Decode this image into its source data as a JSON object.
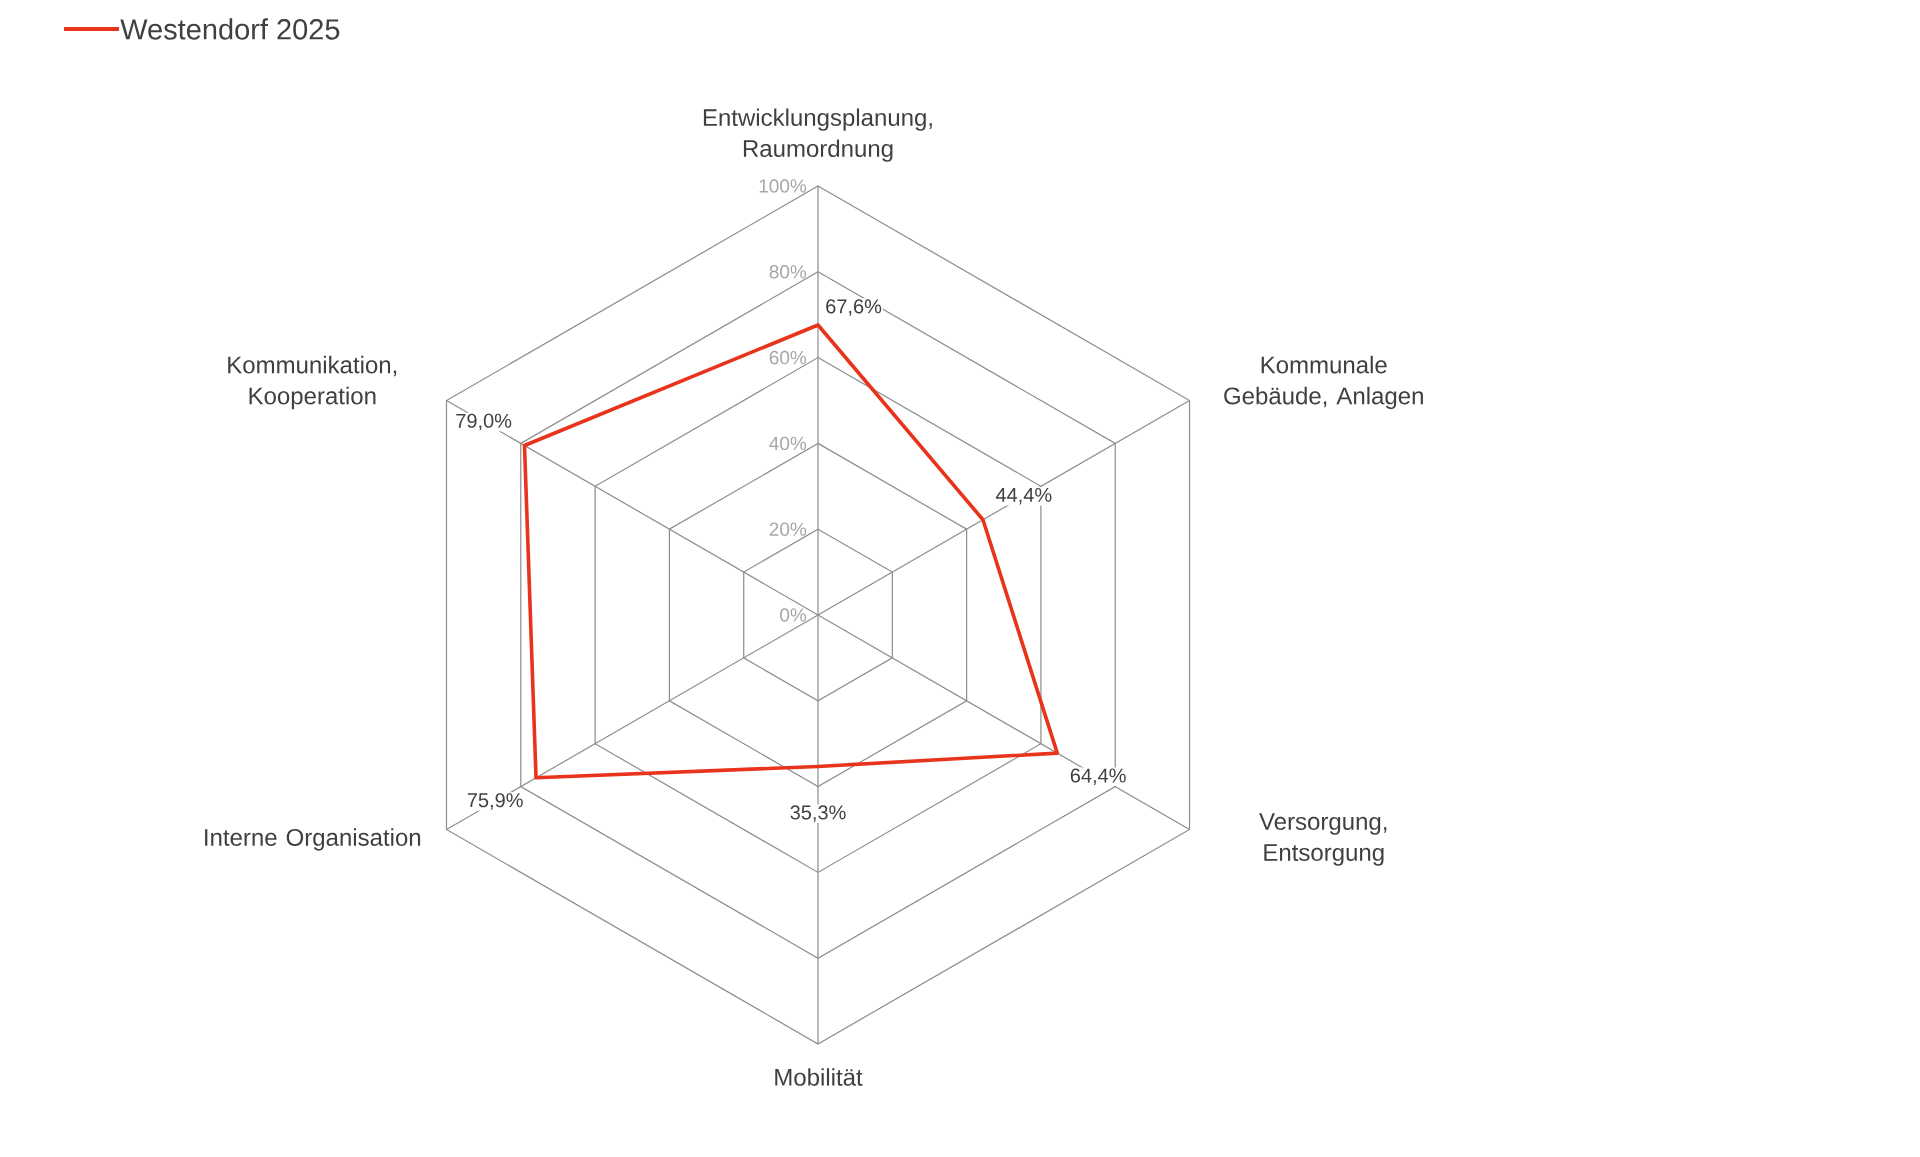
{
  "chart_data": {
    "type": "radar",
    "categories": [
      "Entwicklungsplanung, Raumordnung",
      "Kommunale Gebäude, Anlagen",
      "Versorgung, Entsorgung",
      "Mobilität",
      "Interne Organisation",
      "Kommunikation, Kooperation"
    ],
    "series": [
      {
        "name": "Westendorf 2025",
        "color": "#e8341c",
        "values": [
          67.6,
          44.4,
          64.4,
          35.3,
          75.9,
          79.0
        ],
        "value_labels": [
          "67,6%",
          "44,4%",
          "64,4%",
          "35,3%",
          "75,9%",
          "79,0%"
        ]
      }
    ],
    "ylim": [
      0,
      100
    ],
    "yticks": [
      {
        "value": 0,
        "label": "0%"
      },
      {
        "value": 20,
        "label": "20%"
      },
      {
        "value": 40,
        "label": "40%"
      },
      {
        "value": 60,
        "label": "60%"
      },
      {
        "value": 80,
        "label": "80%"
      },
      {
        "value": 100,
        "label": "100%"
      }
    ],
    "grid": true,
    "legend": "top left"
  }
}
